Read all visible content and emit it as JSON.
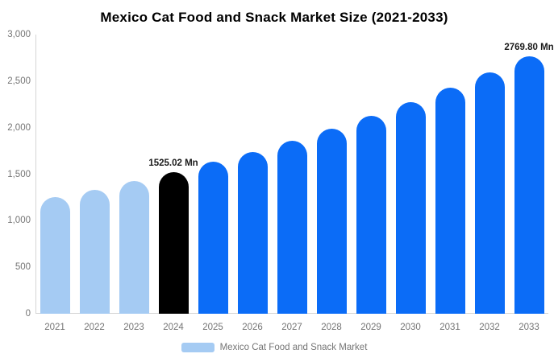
{
  "chart_data": {
    "type": "bar",
    "title": "Mexico Cat Food and Snack Market Size (2021-2033)",
    "unit": "Mn",
    "categories": [
      "2021",
      "2022",
      "2023",
      "2024",
      "2025",
      "2026",
      "2027",
      "2028",
      "2029",
      "2030",
      "2031",
      "2032",
      "2033"
    ],
    "values": [
      1250,
      1335,
      1427,
      1525.02,
      1630,
      1742,
      1861,
      1989,
      2125,
      2271,
      2426,
      2593,
      2769.8
    ],
    "bar_types": [
      "historical",
      "historical",
      "historical",
      "highlight",
      "forecast",
      "forecast",
      "forecast",
      "forecast",
      "forecast",
      "forecast",
      "forecast",
      "forecast",
      "forecast"
    ],
    "annotations": [
      {
        "category": "2024",
        "text": "1525.02 Mn"
      },
      {
        "category": "2033",
        "text": "2769.80 Mn"
      }
    ],
    "xlabel": "",
    "ylabel": "",
    "ylim": [
      0,
      3000
    ],
    "y_ticks": [
      {
        "value": 3000,
        "label": "3,000"
      },
      {
        "value": 2500,
        "label": "2,500"
      },
      {
        "value": 2000,
        "label": "2,000"
      },
      {
        "value": 1500,
        "label": "1,500"
      },
      {
        "value": 1000,
        "label": "1,000"
      },
      {
        "value": 500,
        "label": "500"
      },
      {
        "value": 0,
        "label": "0"
      }
    ],
    "grid": false,
    "legend": {
      "position": "bottom",
      "label": "Mexico Cat Food and Snack Market",
      "swatch_color": "#a5cbf3"
    },
    "colors": {
      "historical": "#a5cbf3",
      "highlight": "#000000",
      "forecast": "#0b6cf7",
      "axis_line": "#d4d4d4",
      "tick_text": "#757575",
      "title_text": "#000000",
      "value_label_text": "#1a1a1a",
      "background": "#ffffff"
    }
  }
}
